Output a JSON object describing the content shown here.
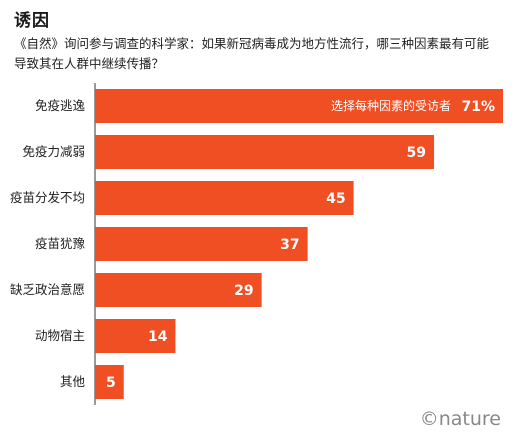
{
  "header": {
    "title": "诱因",
    "subtitle": "《自然》询问参与调查的科学家：如果新冠病毒成为地方性流行，哪三种因素最有可能导致其在人群中继续传播？"
  },
  "footer": {
    "credit": "©nature"
  },
  "colors": {
    "bar": "#F04E23",
    "axis_line": "#333333",
    "bar_text": "#ffffff"
  },
  "chart_data": {
    "type": "bar",
    "orientation": "horizontal",
    "title": "诱因",
    "subtitle": "《自然》询问参与调查的科学家：如果新冠病毒成为地方性流行，哪三种因素最有可能导致其在人群中继续传播？",
    "categories": [
      "免疫逃逸",
      "免疫力减弱",
      "疫苗分发不均",
      "疫苗犹豫",
      "缺乏政治意愿",
      "动物宿主",
      "其他"
    ],
    "values": [
      71,
      59,
      45,
      37,
      29,
      14,
      5
    ],
    "value_labels": [
      "71%",
      "59",
      "45",
      "37",
      "29",
      "14",
      "5"
    ],
    "annotation": "选择每种因素的受访者",
    "xlim": [
      0,
      71
    ],
    "grid": false,
    "legend": "none"
  }
}
